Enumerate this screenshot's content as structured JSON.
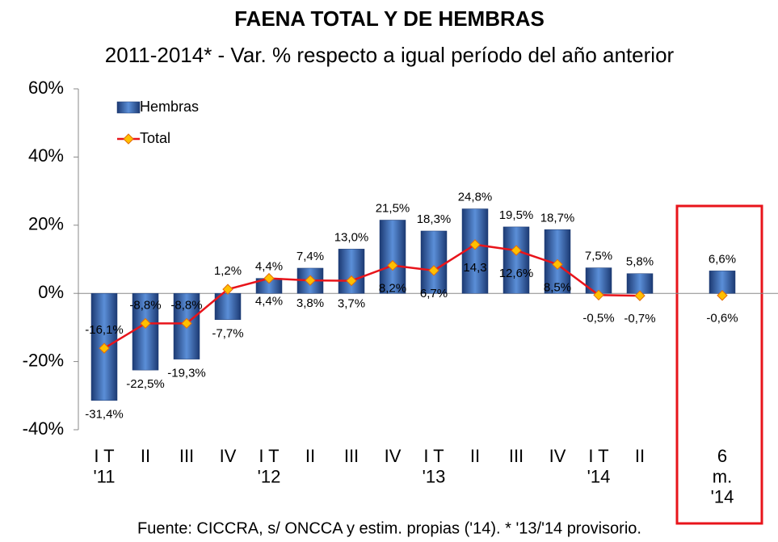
{
  "chart_data": {
    "type": "bar",
    "title": "FAENA TOTAL Y DE HEMBRAS",
    "subtitle": "2011-2014* - Var. % respecto a igual período del año anterior",
    "source": "Fuente: CICCRA, s/ ONCCA y estim. propias ('14). * '13/'14 provisorio.",
    "categories": [
      "I T\n'11",
      "II",
      "III",
      "IV",
      "I T\n'12",
      "II",
      "III",
      "IV",
      "I T\n'13",
      "II",
      "III",
      "IV",
      "I T\n'14",
      "II",
      null,
      "6\nm.\n'14"
    ],
    "series": [
      {
        "name": "Hembras",
        "type": "bar",
        "color": "#2f5597",
        "values": [
          -31.4,
          -22.5,
          -19.3,
          -7.7,
          4.4,
          7.4,
          13.0,
          21.5,
          18.3,
          24.8,
          19.5,
          18.7,
          7.5,
          5.8,
          null,
          6.6
        ],
        "value_labels": [
          "-31,4%",
          "-22,5%",
          "-19,3%",
          "-7,7%",
          "4,4%",
          "7,4%",
          "13,0%",
          "21,5%",
          "18,3%",
          "24,8%",
          "19,5%",
          "18,7%",
          "7,5%",
          "5,8%",
          null,
          "6,6%"
        ]
      },
      {
        "name": "Total",
        "type": "line",
        "color": "#e8141b",
        "values": [
          -16.1,
          -8.8,
          -8.8,
          1.2,
          4.4,
          3.8,
          3.7,
          8.2,
          6.7,
          14.3,
          12.6,
          8.5,
          -0.5,
          -0.7,
          null,
          -0.6
        ],
        "value_labels": [
          "-16,1%",
          "-8,8%",
          "-8,8%",
          "1,2%",
          "4,4%",
          "3,8%",
          "3,7%",
          "8,2%",
          "6,7%",
          "14,3",
          "12,6%",
          "8,5%",
          "-0,5%",
          "-0,7%",
          null,
          "-0,6%"
        ]
      }
    ],
    "ylim": [
      -40,
      60
    ],
    "yticks": [
      {
        "value": -40,
        "label": "-40%"
      },
      {
        "value": -20,
        "label": "-20%"
      },
      {
        "value": 0,
        "label": "0%"
      },
      {
        "value": 20,
        "label": "20%"
      },
      {
        "value": 40,
        "label": "40%"
      },
      {
        "value": 60,
        "label": "60%"
      }
    ],
    "legend": "top-left"
  }
}
